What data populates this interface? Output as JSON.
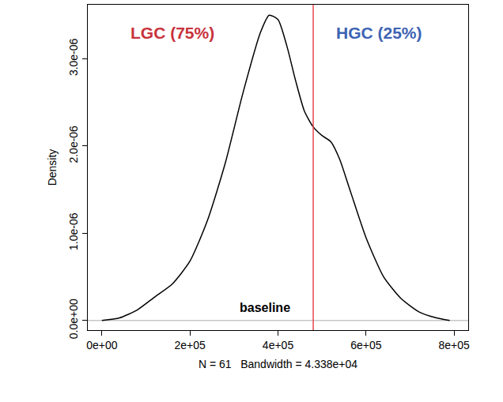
{
  "chart_data": {
    "type": "line",
    "x_label": "N = 61   Bandwidth = 4.338e+04",
    "y_label": "Density",
    "x": [
      0,
      40000,
      80000,
      120000,
      160000,
      200000,
      240000,
      280000,
      320000,
      360000,
      380000,
      400000,
      420000,
      440000,
      460000,
      480000,
      500000,
      520000,
      540000,
      560000,
      600000,
      640000,
      680000,
      720000,
      760000,
      790000
    ],
    "values": [
      0.0,
      3e-08,
      1.2e-07,
      2.7e-07,
      4.2e-07,
      6.8e-07,
      1.15e-06,
      1.8e-06,
      2.6e-06,
      3.3e-06,
      3.5e-06,
      3.45e-06,
      3.15e-06,
      2.75e-06,
      2.4e-06,
      2.22e-06,
      2.12e-06,
      2.05e-06,
      1.85e-06,
      1.55e-06,
      9.5e-07,
      5e-07,
      2.5e-07,
      1e-07,
      3e-08,
      0.0
    ],
    "color": "#000000",
    "xlim": [
      -32000,
      832000
    ],
    "ylim": [
      -1.1e-07,
      3.62e-06
    ],
    "xticks": [
      {
        "value": 0,
        "label": "0e+00"
      },
      {
        "value": 200000,
        "label": "2e+05"
      },
      {
        "value": 400000,
        "label": "4e+05"
      },
      {
        "value": 600000,
        "label": "6e+05"
      },
      {
        "value": 800000,
        "label": "8e+05"
      }
    ],
    "yticks": [
      {
        "value": 0,
        "label": "0.0e+00"
      },
      {
        "value": 1e-06,
        "label": "1.0e-06"
      },
      {
        "value": 2e-06,
        "label": "2.0e-06"
      },
      {
        "value": 3e-06,
        "label": "3.0e-06"
      }
    ],
    "grid": false,
    "annotations": [
      {
        "text": "LGC (75%)",
        "x": 160000,
        "y": 3.3e-06,
        "color": "#c8323c"
      },
      {
        "text": "HGC (25%)",
        "x": 630000,
        "y": 3.3e-06,
        "color": "#3d63b3"
      },
      {
        "text": "baseline",
        "x": 370000,
        "y": 5e-08,
        "color": "#000000"
      }
    ],
    "threshold": {
      "x": 480000,
      "color": "#e8474e"
    },
    "baseline": {
      "y": 0,
      "color": "#aaaaaa"
    }
  }
}
